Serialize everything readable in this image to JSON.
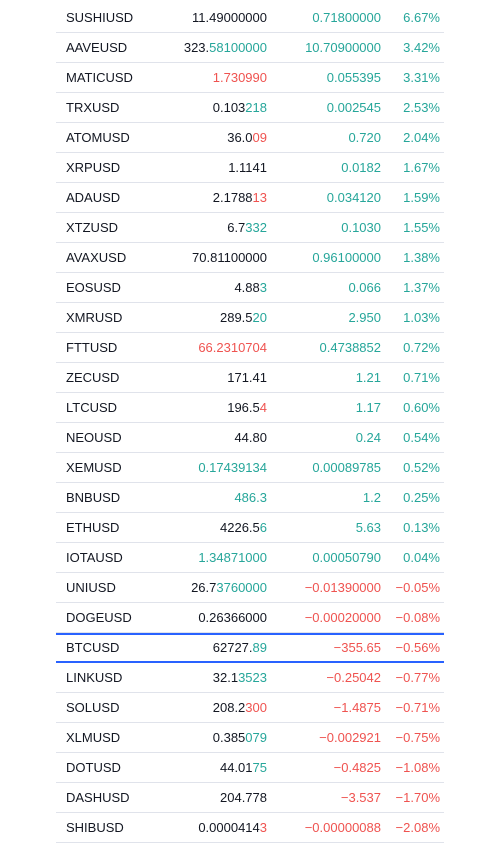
{
  "colors": {
    "up": "#26a69a",
    "down": "#ef5350",
    "neutral": "#131722",
    "selected_border": "#2962ff"
  },
  "rows": [
    {
      "symbol": "SUSHIUSD",
      "last_base": "11.49000000",
      "last_tick": "",
      "last_dir": "",
      "change": "0.71800000",
      "change_pct": "6.67%",
      "dir": "up"
    },
    {
      "symbol": "AAVEUSD",
      "last_base": "323.",
      "last_tick": "58100000",
      "last_dir": "up",
      "change": "10.70900000",
      "change_pct": "3.42%",
      "dir": "up"
    },
    {
      "symbol": "MATICUSD",
      "last_base": "",
      "last_tick": "1.730990",
      "last_dir": "down",
      "change": "0.055395",
      "change_pct": "3.31%",
      "dir": "up"
    },
    {
      "symbol": "TRXUSD",
      "last_base": "0.103",
      "last_tick": "218",
      "last_dir": "up",
      "change": "0.002545",
      "change_pct": "2.53%",
      "dir": "up"
    },
    {
      "symbol": "ATOMUSD",
      "last_base": "36.0",
      "last_tick": "09",
      "last_dir": "down",
      "change": "0.720",
      "change_pct": "2.04%",
      "dir": "up"
    },
    {
      "symbol": "XRPUSD",
      "last_base": "1.1141",
      "last_tick": "",
      "last_dir": "",
      "change": "0.0182",
      "change_pct": "1.67%",
      "dir": "up"
    },
    {
      "symbol": "ADAUSD",
      "last_base": "2.1788",
      "last_tick": "13",
      "last_dir": "down",
      "change": "0.034120",
      "change_pct": "1.59%",
      "dir": "up"
    },
    {
      "symbol": "XTZUSD",
      "last_base": "6.7",
      "last_tick": "332",
      "last_dir": "up",
      "change": "0.1030",
      "change_pct": "1.55%",
      "dir": "up"
    },
    {
      "symbol": "AVAXUSD",
      "last_base": "70.81100000",
      "last_tick": "",
      "last_dir": "",
      "change": "0.96100000",
      "change_pct": "1.38%",
      "dir": "up"
    },
    {
      "symbol": "EOSUSD",
      "last_base": "4.88",
      "last_tick": "3",
      "last_dir": "up",
      "change": "0.066",
      "change_pct": "1.37%",
      "dir": "up"
    },
    {
      "symbol": "XMRUSD",
      "last_base": "289.5",
      "last_tick": "20",
      "last_dir": "up",
      "change": "2.950",
      "change_pct": "1.03%",
      "dir": "up"
    },
    {
      "symbol": "FTTUSD",
      "last_base": "",
      "last_tick": "66.2310704",
      "last_dir": "down",
      "change": "0.4738852",
      "change_pct": "0.72%",
      "dir": "up"
    },
    {
      "symbol": "ZECUSD",
      "last_base": "171.41",
      "last_tick": "",
      "last_dir": "",
      "change": "1.21",
      "change_pct": "0.71%",
      "dir": "up"
    },
    {
      "symbol": "LTCUSD",
      "last_base": "196.5",
      "last_tick": "4",
      "last_dir": "down",
      "change": "1.17",
      "change_pct": "0.60%",
      "dir": "up"
    },
    {
      "symbol": "NEOUSD",
      "last_base": "44.80",
      "last_tick": "",
      "last_dir": "",
      "change": "0.24",
      "change_pct": "0.54%",
      "dir": "up"
    },
    {
      "symbol": "XEMUSD",
      "last_base": "",
      "last_tick": "0.17439134",
      "last_dir": "up",
      "change": "0.00089785",
      "change_pct": "0.52%",
      "dir": "up"
    },
    {
      "symbol": "BNBUSD",
      "last_base": "",
      "last_tick": "486.3",
      "last_dir": "up",
      "change": "1.2",
      "change_pct": "0.25%",
      "dir": "up"
    },
    {
      "symbol": "ETHUSD",
      "last_base": "4226.5",
      "last_tick": "6",
      "last_dir": "up",
      "change": "5.63",
      "change_pct": "0.13%",
      "dir": "up"
    },
    {
      "symbol": "IOTAUSD",
      "last_base": "",
      "last_tick": "1.34871000",
      "last_dir": "up",
      "change": "0.00050790",
      "change_pct": "0.04%",
      "dir": "up"
    },
    {
      "symbol": "UNIUSD",
      "last_base": "26.7",
      "last_tick": "3760000",
      "last_dir": "up",
      "change": "−0.01390000",
      "change_pct": "−0.05%",
      "dir": "down"
    },
    {
      "symbol": "DOGEUSD",
      "last_base": "0.26366000",
      "last_tick": "",
      "last_dir": "",
      "change": "−0.00020000",
      "change_pct": "−0.08%",
      "dir": "down"
    },
    {
      "symbol": "BTCUSD",
      "last_base": "62727.",
      "last_tick": "89",
      "last_dir": "up",
      "change": "−355.65",
      "change_pct": "−0.56%",
      "dir": "down",
      "selected": true
    },
    {
      "symbol": "LINKUSD",
      "last_base": "32.1",
      "last_tick": "3523",
      "last_dir": "up",
      "change": "−0.25042",
      "change_pct": "−0.77%",
      "dir": "down"
    },
    {
      "symbol": "SOLUSD",
      "last_base": "208.2",
      "last_tick": "300",
      "last_dir": "down",
      "change": "−1.4875",
      "change_pct": "−0.71%",
      "dir": "down"
    },
    {
      "symbol": "XLMUSD",
      "last_base": "0.385",
      "last_tick": "079",
      "last_dir": "up",
      "change": "−0.002921",
      "change_pct": "−0.75%",
      "dir": "down"
    },
    {
      "symbol": "DOTUSD",
      "last_base": "44.01",
      "last_tick": "75",
      "last_dir": "up",
      "change": "−0.4825",
      "change_pct": "−1.08%",
      "dir": "down"
    },
    {
      "symbol": "DASHUSD",
      "last_base": "204.778",
      "last_tick": "",
      "last_dir": "",
      "change": "−3.537",
      "change_pct": "−1.70%",
      "dir": "down"
    },
    {
      "symbol": "SHIBUSD",
      "last_base": "0.0000414",
      "last_tick": "3",
      "last_dir": "down",
      "change": "−0.00000088",
      "change_pct": "−2.08%",
      "dir": "down"
    }
  ]
}
